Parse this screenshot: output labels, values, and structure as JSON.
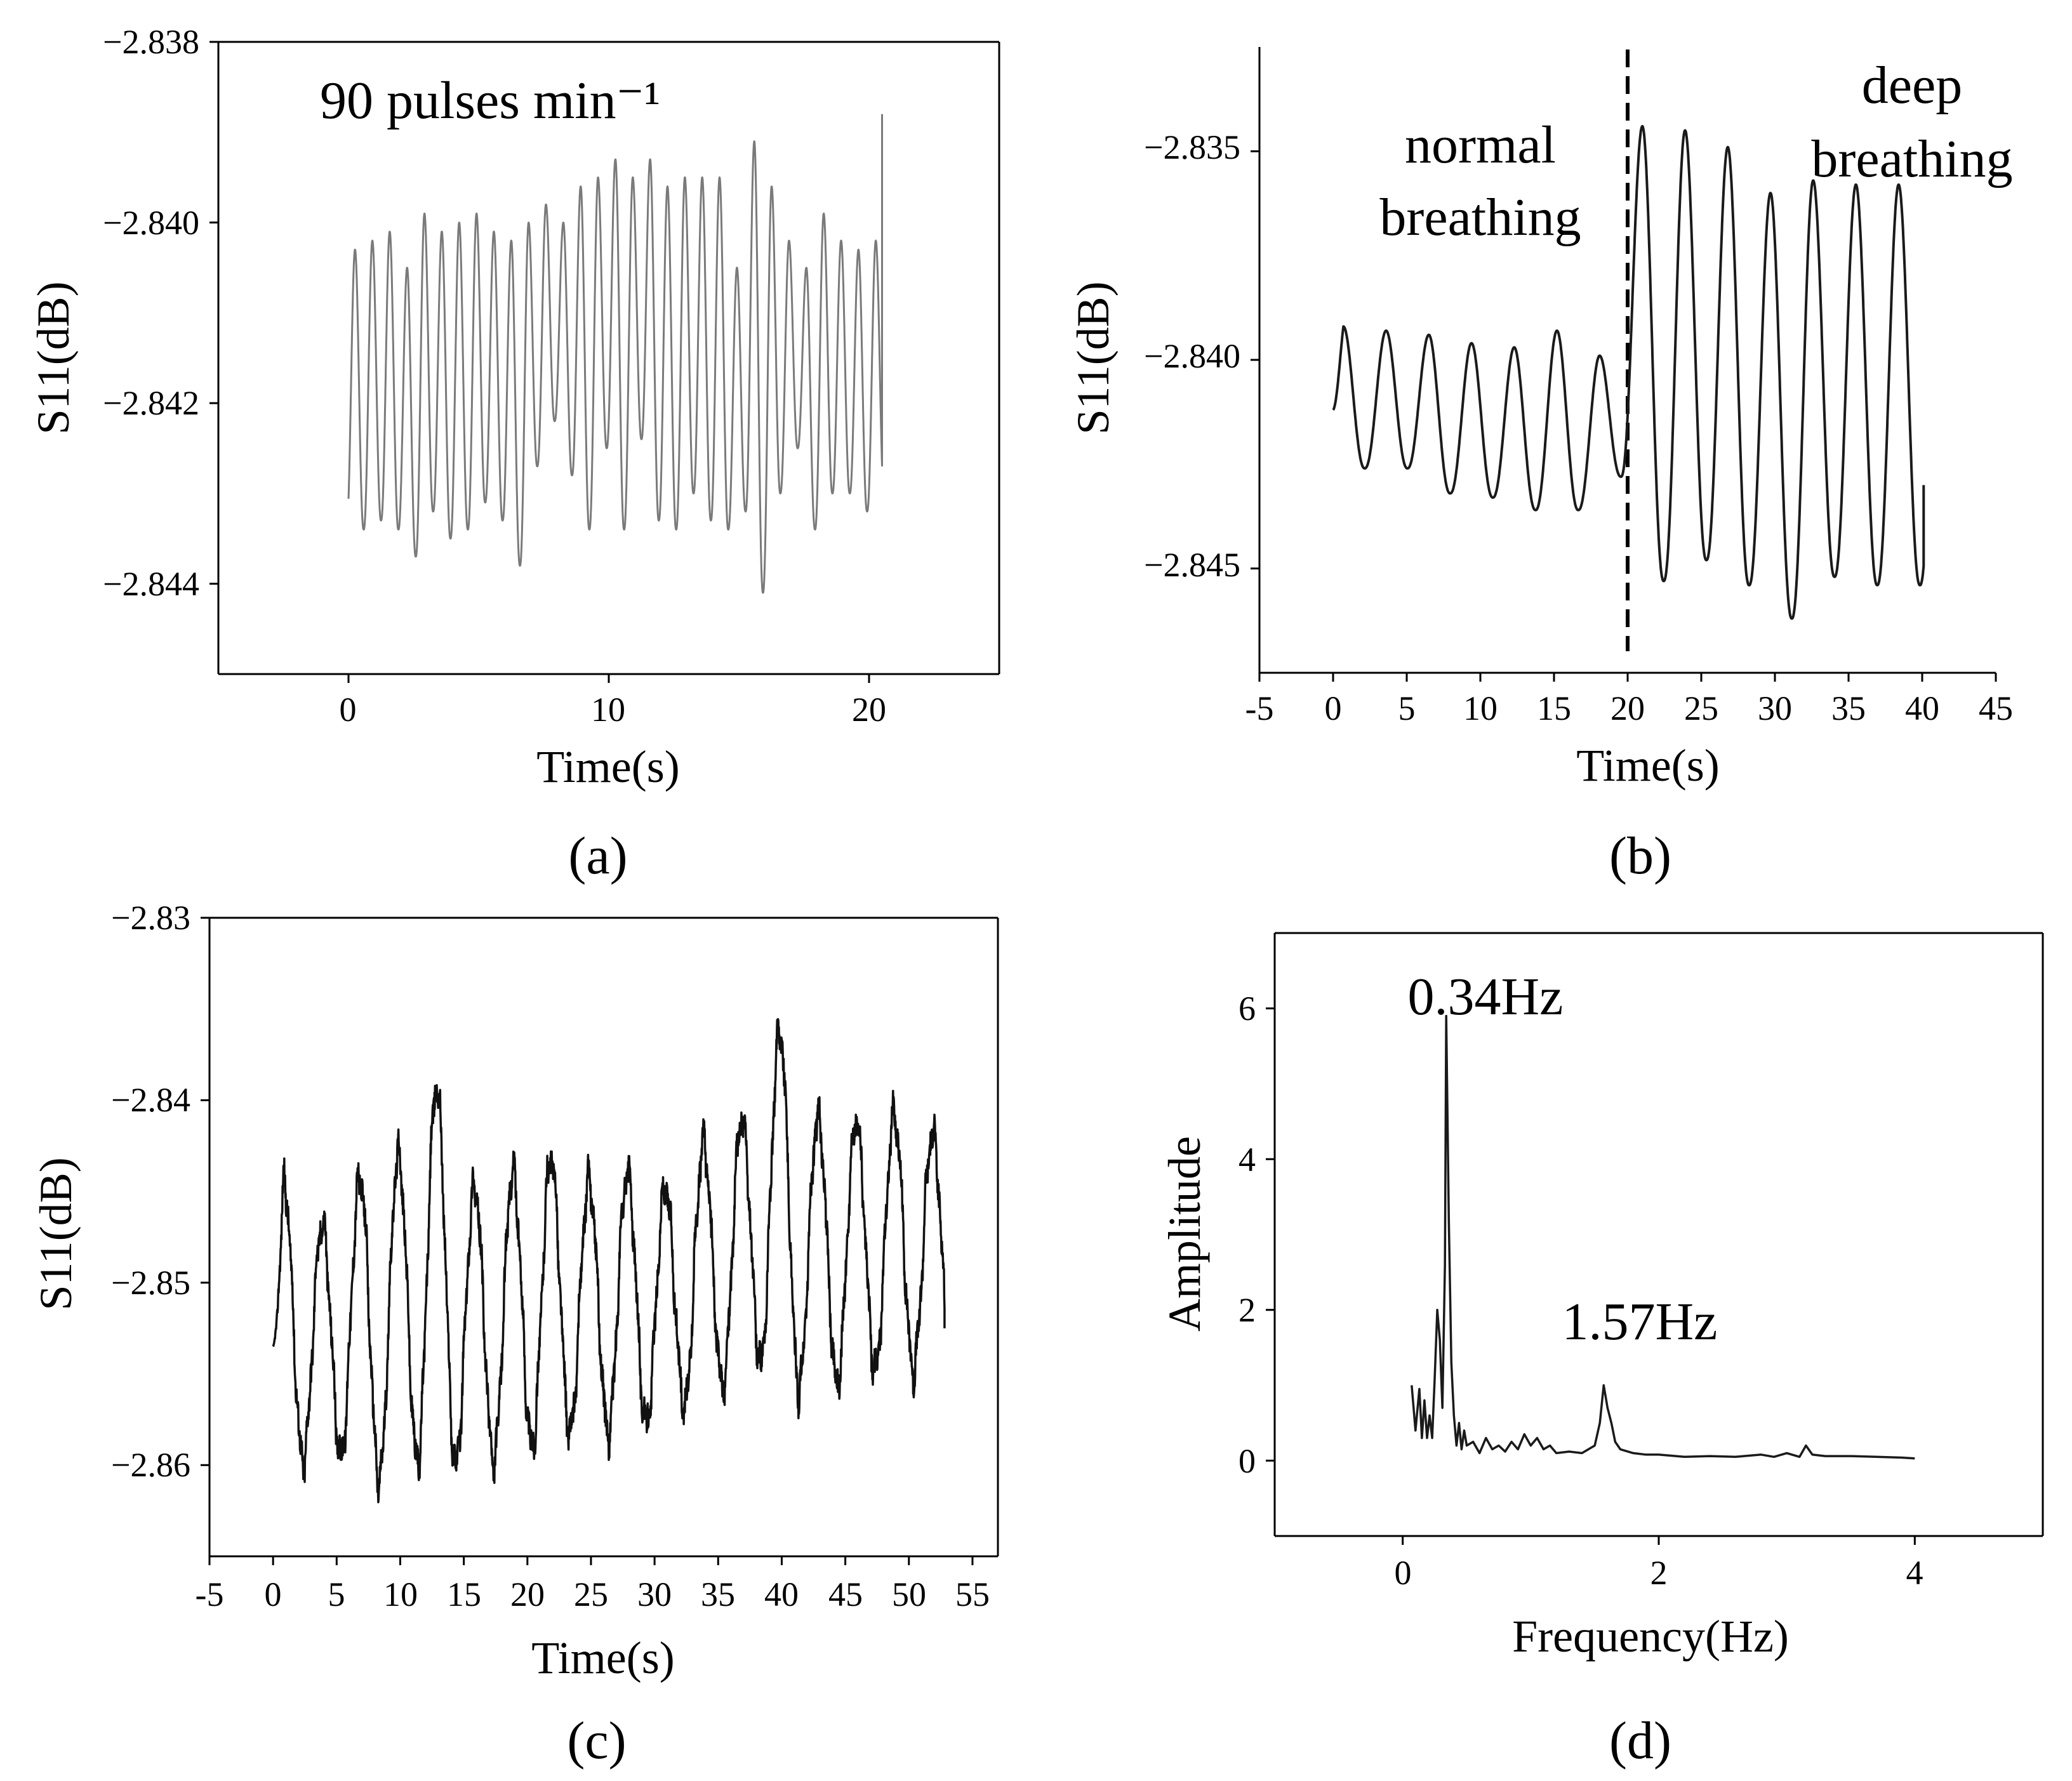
{
  "chart_data": [
    {
      "id": "a",
      "type": "line",
      "caption": "(a)",
      "xlabel": "Time(s)",
      "ylabel": "S11(dB)",
      "xlim": [
        -5,
        25
      ],
      "ylim": [
        -2.845,
        -2.838
      ],
      "x_ticks": [
        0,
        10,
        20
      ],
      "x_tick_labels": [
        "0",
        "10",
        "20"
      ],
      "y_ticks": [
        -2.838,
        -2.84,
        -2.842,
        -2.844
      ],
      "y_tick_labels": [
        "−2.838",
        "−2.840",
        "−2.842",
        "−2.844"
      ],
      "annotations": [
        {
          "text": "90 pulses min⁻¹",
          "x": -1,
          "y": -2.8386
        }
      ],
      "series": [
        {
          "name": "S11",
          "color": "#7a7a7a",
          "generator": "oscillation",
          "x_start": 0,
          "x_end": 20.5,
          "period": 0.667,
          "phase": 0.25,
          "peaks": [
            -2.8403,
            -2.8402,
            -2.8401,
            -2.8405,
            -2.8399,
            -2.8401,
            -2.84,
            -2.8399,
            -2.8401,
            -2.8402,
            -2.84,
            -2.8398,
            -2.84,
            -2.8396,
            -2.8395,
            -2.8393,
            -2.8395,
            -2.8393,
            -2.8396,
            -2.8395,
            -2.8395,
            -2.8395,
            -2.8405,
            -2.8391,
            -2.8396,
            -2.8402,
            -2.8405,
            -2.8399,
            -2.8402,
            -2.8403,
            -2.8402
          ],
          "troughs": [
            -2.8434,
            -2.8433,
            -2.8434,
            -2.8437,
            -2.8432,
            -2.8435,
            -2.8434,
            -2.8431,
            -2.8433,
            -2.8438,
            -2.8427,
            -2.8422,
            -2.8428,
            -2.8434,
            -2.8425,
            -2.8434,
            -2.8424,
            -2.8433,
            -2.8434,
            -2.843,
            -2.8433,
            -2.8434,
            -2.8432,
            -2.8441,
            -2.843,
            -2.8425,
            -2.8434,
            -2.843,
            -2.843,
            -2.8432,
            -2.8431
          ],
          "end_value": -2.8388
        }
      ]
    },
    {
      "id": "b",
      "type": "line",
      "caption": "(b)",
      "xlabel": "Time(s)",
      "ylabel": "S11(dB)",
      "xlim": [
        -5,
        45
      ],
      "ylim": [
        -2.8475,
        -2.8325
      ],
      "x_ticks": [
        -5,
        0,
        5,
        10,
        15,
        20,
        25,
        30,
        35,
        40,
        45
      ],
      "x_tick_labels": [
        "-5",
        "0",
        "5",
        "10",
        "15",
        "20",
        "25",
        "30",
        "35",
        "40",
        "45"
      ],
      "y_ticks": [
        -2.835,
        -2.84,
        -2.845
      ],
      "y_tick_labels": [
        "−2.835",
        "−2.840",
        "−2.845"
      ],
      "divider_x": 20,
      "annotations": [
        {
          "lines": [
            "normal",
            "breathing"
          ],
          "x": 10,
          "y": -2.8346
        },
        {
          "lines": [
            "deep",
            "breathing"
          ],
          "x": 37.5,
          "y": -2.8314
        }
      ],
      "series": [
        {
          "name": "S11",
          "color": "#1a1a1a",
          "generator": "oscillation",
          "x_start": 0,
          "x_end": 40.1,
          "period": 2.9,
          "phase": 0.7,
          "start_value": -2.8412,
          "peaks": [
            -2.8392,
            -2.8393,
            -2.8394,
            -2.8396,
            -2.8397,
            -2.8393,
            -2.8399,
            -2.8344,
            -2.8345,
            -2.8349,
            -2.836,
            -2.8357,
            -2.8358
          ],
          "troughs": [
            -2.8426,
            -2.8426,
            -2.8432,
            -2.8433,
            -2.8436,
            -2.8436,
            -2.8428,
            -2.8453,
            -2.8448,
            -2.8454,
            -2.8462,
            -2.8452,
            -2.8454
          ],
          "end_value": -2.843
        }
      ]
    },
    {
      "id": "c",
      "type": "line",
      "caption": "(c)",
      "xlabel": "Time(s)",
      "ylabel": "S11(dB)",
      "xlim": [
        -5,
        57
      ],
      "ylim": [
        -2.865,
        -2.83
      ],
      "x_ticks": [
        -5,
        0,
        5,
        10,
        15,
        20,
        25,
        30,
        35,
        40,
        45,
        50,
        55
      ],
      "x_tick_labels": [
        "-5",
        "0",
        "5",
        "10",
        "15",
        "20",
        "25",
        "30",
        "35",
        "40",
        "45",
        "50",
        "55"
      ],
      "y_ticks": [
        -2.83,
        -2.84,
        -2.85,
        -2.86
      ],
      "y_tick_labels": [
        "−2.83",
        "−2.84",
        "−2.85",
        "−2.86"
      ],
      "series": [
        {
          "name": "S11",
          "color": "#111111",
          "generator": "noisy-oscillation",
          "x_start": 0,
          "x_end": 52.8,
          "period": 3.0,
          "phase": 0.85,
          "start_value": -2.8535,
          "peaks": [
            -2.8445,
            -2.8468,
            -2.8443,
            -2.843,
            -2.8392,
            -2.8448,
            -2.844,
            -2.8432,
            -2.8445,
            -2.844,
            -2.8448,
            -2.8425,
            -2.841,
            -2.8362,
            -2.841,
            -2.8412,
            -2.8408,
            -2.8418,
            -2.8412
          ],
          "troughs": [
            -2.8598,
            -2.8595,
            -2.8608,
            -2.8598,
            -2.86,
            -2.8598,
            -2.859,
            -2.8582,
            -2.8582,
            -2.8578,
            -2.8568,
            -2.8558,
            -2.8545,
            -2.8558,
            -2.8555,
            -2.8548,
            -2.8548,
            -2.8548,
            -2.854
          ],
          "end_value": -2.8525
        }
      ]
    },
    {
      "id": "d",
      "type": "line",
      "caption": "(d)",
      "xlabel": "Frequency(Hz)",
      "ylabel": "Amplitude",
      "xlim": [
        -1,
        5
      ],
      "ylim": [
        -1,
        7
      ],
      "x_ticks": [
        0,
        2,
        4
      ],
      "x_tick_labels": [
        "0",
        "2",
        "4"
      ],
      "y_ticks": [
        0,
        2,
        4,
        6
      ],
      "y_tick_labels": [
        "0",
        "2",
        "4",
        "6"
      ],
      "annotations": [
        {
          "text": "0.34Hz",
          "x": 0.65,
          "y": 6.0
        },
        {
          "text": "1.57Hz",
          "x": 1.85,
          "y": 1.8
        }
      ],
      "series": [
        {
          "name": "Amplitude",
          "color": "#1a1a1a",
          "generator": "points",
          "x": [
            0.07,
            0.1,
            0.13,
            0.15,
            0.17,
            0.19,
            0.21,
            0.23,
            0.25,
            0.27,
            0.29,
            0.31,
            0.33,
            0.34,
            0.36,
            0.38,
            0.4,
            0.42,
            0.44,
            0.46,
            0.48,
            0.5,
            0.55,
            0.6,
            0.65,
            0.7,
            0.75,
            0.8,
            0.85,
            0.9,
            0.95,
            1.0,
            1.05,
            1.1,
            1.15,
            1.2,
            1.3,
            1.4,
            1.5,
            1.54,
            1.57,
            1.6,
            1.63,
            1.66,
            1.7,
            1.8,
            1.9,
            2.0,
            2.2,
            2.4,
            2.6,
            2.8,
            2.9,
            3.0,
            3.1,
            3.15,
            3.2,
            3.3,
            3.5,
            3.7,
            3.9,
            4.0
          ],
          "y": [
            1.0,
            0.4,
            0.95,
            0.3,
            0.8,
            0.3,
            0.6,
            0.3,
            1.1,
            2.0,
            1.6,
            0.7,
            2.6,
            5.9,
            3.2,
            1.3,
            0.6,
            0.2,
            0.5,
            0.15,
            0.4,
            0.2,
            0.25,
            0.1,
            0.3,
            0.15,
            0.2,
            0.12,
            0.25,
            0.15,
            0.35,
            0.2,
            0.3,
            0.15,
            0.2,
            0.1,
            0.12,
            0.1,
            0.2,
            0.5,
            1.0,
            0.7,
            0.5,
            0.25,
            0.15,
            0.1,
            0.08,
            0.08,
            0.05,
            0.06,
            0.05,
            0.08,
            0.05,
            0.1,
            0.05,
            0.2,
            0.08,
            0.06,
            0.06,
            0.05,
            0.04,
            0.03
          ]
        }
      ]
    }
  ]
}
